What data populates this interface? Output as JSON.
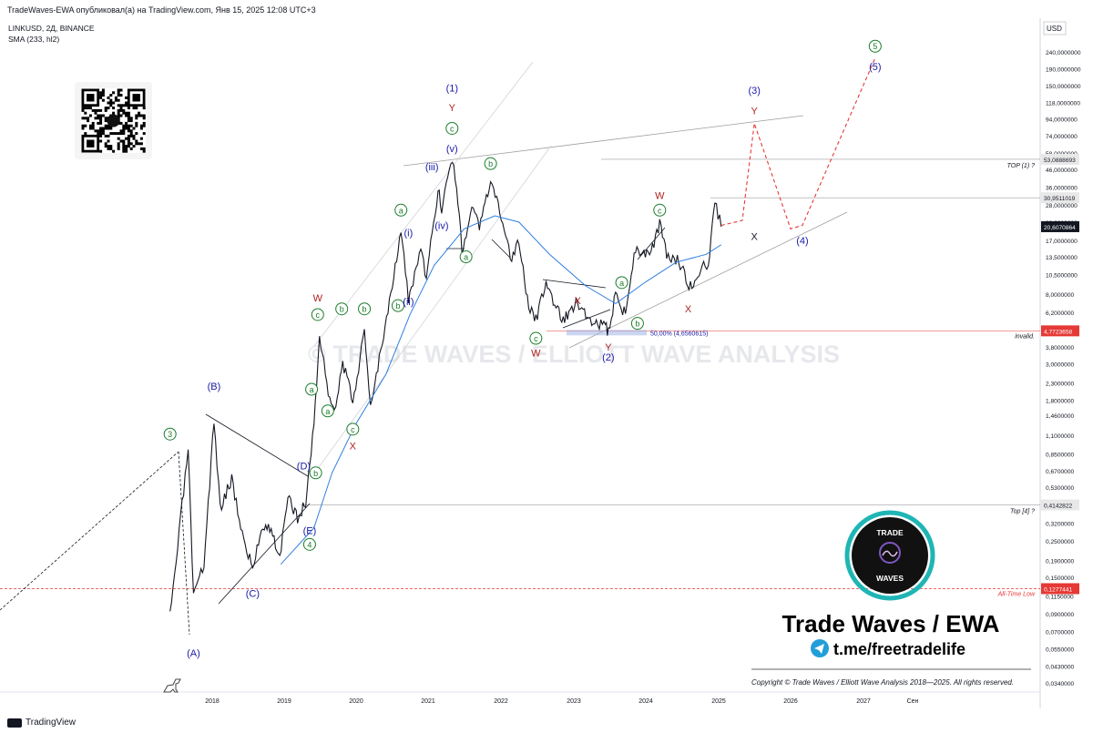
{
  "header": {
    "publisher_line": "TradeWaves-EWA опубликовал(а) на TradingView.com, Янв 15, 2025 12:08 UTC+3"
  },
  "symbol_info": {
    "line1": "LINKUSD, 2Д, BINANCE",
    "line2": "SMA (233, hl2)"
  },
  "footer": {
    "platform": "TradingView"
  },
  "branding": {
    "name": "Trade Waves / EWA",
    "telegram": "t.me/freetradelife",
    "logo_top": "TRADE",
    "logo_bottom": "WAVES",
    "watermark": "© TRADE WAVES / ELLIOTT WAVE ANALYSIS",
    "copyright": "Copyright © Trade Waves / Elliott Wave Analysis 2018—2025. All rights reserved."
  },
  "colors": {
    "impulse": "#1a1aa6",
    "correction": "#b22222",
    "minor": "#1b7d2b",
    "sma": "#2f7fe0",
    "projection": "#e53935"
  },
  "chart_data": {
    "type": "line",
    "symbol": "LINKUSD",
    "timeframe": "2Д",
    "exchange": "BINANCE",
    "y_scale": "log",
    "y_currency": "USD",
    "y_ticks": [
      "240,0000000",
      "190,0000000",
      "150,0000000",
      "118,0000000",
      "94,0000000",
      "74,0000000",
      "58,0000000",
      "46,0000000",
      "36,0000000",
      "28,0000000",
      "22,0000000",
      "17,0000000",
      "13,5000000",
      "10,5000000",
      "8,0000000",
      "6,2000000",
      "4,8000000",
      "3,8000000",
      "3,0000000",
      "2,3000000",
      "1,8000000",
      "1,4600000",
      "1,1000000",
      "0,8500000",
      "0,6700000",
      "0,5300000",
      "0,4150000",
      "0,3200000",
      "0,2500000",
      "0,1900000",
      "0,1500000",
      "0,1150000",
      "0,0900000",
      "0,0700000",
      "0,0550000",
      "0,0430000",
      "0,0340000"
    ],
    "x_ticks": [
      "2018",
      "2019",
      "2020",
      "2021",
      "2022",
      "2023",
      "2024",
      "2025",
      "2026",
      "2027",
      "Сен"
    ],
    "price_labels": [
      {
        "text": "53,0888693",
        "style": "gray"
      },
      {
        "text": "30,9511019",
        "style": "gray"
      },
      {
        "text": "20,6070864",
        "style": "dark"
      },
      {
        "text": "4,7723658",
        "style": "red"
      },
      {
        "text": "0,4142822",
        "style": "gray"
      },
      {
        "text": "0,1277441",
        "style": "red"
      }
    ],
    "level_labels": [
      "TOP (1) ?",
      "invalid.",
      "Top [4] ?",
      "All-Time Low"
    ],
    "fib_label": "50,00% (4,6560615)",
    "sma_label": "SMA (233, hl2)",
    "price_path": [
      [
        "2017-06-01",
        0.085
      ],
      [
        "2017-09-01",
        0.9
      ],
      [
        "2017-09-28",
        0.11
      ],
      [
        "2017-11-20",
        0.18
      ],
      [
        "2018-01-10",
        1.35
      ],
      [
        "2018-02-10",
        0.4
      ],
      [
        "2018-04-10",
        0.6
      ],
      [
        "2018-06-10",
        0.25
      ],
      [
        "2018-07-25",
        0.17
      ],
      [
        "2018-09-15",
        0.32
      ],
      [
        "2018-10-20",
        0.3
      ],
      [
        "2018-12-10",
        0.2
      ],
      [
        "2019-01-20",
        0.45
      ],
      [
        "2019-03-10",
        0.35
      ],
      [
        "2019-04-20",
        0.42
      ],
      [
        "2019-06-01",
        1.3
      ],
      [
        "2019-06-29",
        4.4
      ],
      [
        "2019-08-20",
        1.8
      ],
      [
        "2019-09-20",
        1.65
      ],
      [
        "2019-10-25",
        3.0
      ],
      [
        "2019-12-15",
        1.8
      ],
      [
        "2020-02-12",
        4.6
      ],
      [
        "2020-03-14",
        1.7
      ],
      [
        "2020-05-20",
        4.5
      ],
      [
        "2020-08-16",
        19.8
      ],
      [
        "2020-09-23",
        7.3
      ],
      [
        "2020-11-25",
        15.0
      ],
      [
        "2020-12-23",
        9.8
      ],
      [
        "2021-02-20",
        35.0
      ],
      [
        "2021-03-10",
        26.0
      ],
      [
        "2021-04-10",
        44.0
      ],
      [
        "2021-05-10",
        52.0
      ],
      [
        "2021-06-20",
        15.0
      ],
      [
        "2021-08-15",
        28.0
      ],
      [
        "2021-09-15",
        20.0
      ],
      [
        "2021-11-10",
        38.0
      ],
      [
        "2022-01-10",
        22.0
      ],
      [
        "2022-02-24",
        13.0
      ],
      [
        "2022-03-25",
        17.5
      ],
      [
        "2022-05-20",
        7.0
      ],
      [
        "2022-06-18",
        5.3
      ],
      [
        "2022-08-15",
        9.0
      ],
      [
        "2022-11-09",
        5.5
      ],
      [
        "2023-01-20",
        7.2
      ],
      [
        "2023-03-10",
        5.8
      ],
      [
        "2023-06-10",
        5.0
      ],
      [
        "2023-06-25",
        4.7
      ],
      [
        "2023-08-01",
        8.0
      ],
      [
        "2023-09-20",
        6.0
      ],
      [
        "2023-11-10",
        15.5
      ],
      [
        "2024-01-20",
        13.5
      ],
      [
        "2024-03-11",
        21.0
      ],
      [
        "2024-04-15",
        14.0
      ],
      [
        "2024-06-15",
        13.0
      ],
      [
        "2024-08-05",
        8.5
      ],
      [
        "2024-10-10",
        12.0
      ],
      [
        "2024-11-10",
        11.0
      ],
      [
        "2024-12-13",
        30.0
      ],
      [
        "2025-01-14",
        20.6
      ]
    ],
    "sma_path": [
      [
        "2018-12-15",
        0.18
      ],
      [
        "2019-06-01",
        0.3
      ],
      [
        "2019-09-01",
        0.65
      ],
      [
        "2020-01-01",
        1.3
      ],
      [
        "2020-06-01",
        2.6
      ],
      [
        "2020-10-01",
        6.0
      ],
      [
        "2021-02-01",
        12.0
      ],
      [
        "2021-07-01",
        20.0
      ],
      [
        "2021-12-01",
        24.0
      ],
      [
        "2022-04-01",
        22.0
      ],
      [
        "2022-09-01",
        14.0
      ],
      [
        "2023-03-01",
        9.0
      ],
      [
        "2023-08-01",
        7.0
      ],
      [
        "2024-01-01",
        9.5
      ],
      [
        "2024-06-01",
        12.5
      ],
      [
        "2024-11-01",
        14.0
      ],
      [
        "2025-01-14",
        16.0
      ]
    ],
    "projection_path": [
      [
        "2025-01-14",
        21.0
      ],
      [
        "2025-05-01",
        22.5
      ],
      [
        "2025-07-01",
        88.0
      ],
      [
        "2026-01-01",
        20.0
      ],
      [
        "2026-03-01",
        21.0
      ],
      [
        "2027-03-01",
        220.0
      ]
    ],
    "wave_labels": [
      {
        "text": "(A)",
        "date": "2017-09-28",
        "price": 0.052,
        "color": "impulse"
      },
      {
        "text": "3",
        "date": "2017-06-01",
        "price": 1.12,
        "color": "minor",
        "circled": true
      },
      {
        "text": "(B)",
        "date": "2018-01-10",
        "price": 2.2,
        "color": "impulse"
      },
      {
        "text": "(C)",
        "date": "2018-07-25",
        "price": 0.12,
        "color": "impulse"
      },
      {
        "text": "(D)",
        "date": "2019-04-10",
        "price": 0.72,
        "color": "impulse"
      },
      {
        "text": "(E)",
        "date": "2019-05-10",
        "price": 0.29,
        "color": "impulse"
      },
      {
        "text": "4",
        "date": "2019-05-10",
        "price": 0.238,
        "color": "minor",
        "circled": true
      },
      {
        "text": "b",
        "date": "2019-06-10",
        "price": 0.65,
        "color": "minor",
        "circled": true
      },
      {
        "text": "a",
        "date": "2019-05-20",
        "price": 2.1,
        "color": "minor",
        "circled": true
      },
      {
        "text": "c",
        "date": "2019-06-20",
        "price": 6.0,
        "color": "minor",
        "circled": true
      },
      {
        "text": "W",
        "date": "2019-06-20",
        "price": 7.6,
        "color": "correction"
      },
      {
        "text": "a",
        "date": "2019-08-10",
        "price": 1.55,
        "color": "minor",
        "circled": true
      },
      {
        "text": "b",
        "date": "2019-10-20",
        "price": 6.5,
        "color": "minor",
        "circled": true
      },
      {
        "text": "c",
        "date": "2019-12-15",
        "price": 1.2,
        "color": "minor",
        "circled": true
      },
      {
        "text": "X",
        "date": "2019-12-15",
        "price": 0.95,
        "color": "correction"
      },
      {
        "text": "b",
        "date": "2020-02-12",
        "price": 6.5,
        "color": "minor",
        "circled": true
      },
      {
        "text": "b",
        "date": "2020-08-01",
        "price": 6.8,
        "color": "minor",
        "circled": true
      },
      {
        "text": "a",
        "date": "2020-08-16",
        "price": 26.0,
        "color": "minor",
        "circled": true
      },
      {
        "text": "(ii)",
        "date": "2020-09-23",
        "price": 7.2,
        "color": "impulse"
      },
      {
        "text": "(i)",
        "date": "2020-09-23",
        "price": 19.0,
        "color": "impulse"
      },
      {
        "text": "(iii)",
        "date": "2021-01-20",
        "price": 48.0,
        "color": "impulse"
      },
      {
        "text": "(iv)",
        "date": "2021-03-10",
        "price": 21.0,
        "color": "impulse"
      },
      {
        "text": "(v)",
        "date": "2021-05-01",
        "price": 62.0,
        "color": "impulse"
      },
      {
        "text": "c",
        "date": "2021-05-01",
        "price": 82.0,
        "color": "minor",
        "circled": true
      },
      {
        "text": "Y",
        "date": "2021-05-01",
        "price": 110.0,
        "color": "correction"
      },
      {
        "text": "(1)",
        "date": "2021-05-01",
        "price": 145.0,
        "color": "impulse"
      },
      {
        "text": "a",
        "date": "2021-07-10",
        "price": 13.5,
        "color": "minor",
        "circled": true
      },
      {
        "text": "b",
        "date": "2021-11-10",
        "price": 50.0,
        "color": "minor",
        "circled": true
      },
      {
        "text": "c",
        "date": "2022-06-25",
        "price": 4.3,
        "color": "minor",
        "circled": true
      },
      {
        "text": "W",
        "date": "2022-06-25",
        "price": 3.5,
        "color": "correction"
      },
      {
        "text": "X",
        "date": "2023-01-20",
        "price": 7.3,
        "color": "correction"
      },
      {
        "text": "Y",
        "date": "2023-06-25",
        "price": 3.8,
        "color": "correction"
      },
      {
        "text": "(2)",
        "date": "2023-06-25",
        "price": 3.3,
        "color": "impulse"
      },
      {
        "text": "a",
        "date": "2023-09-01",
        "price": 9.4,
        "color": "minor",
        "circled": true
      },
      {
        "text": "b",
        "date": "2023-11-20",
        "price": 5.3,
        "color": "minor",
        "circled": true
      },
      {
        "text": "c",
        "date": "2024-03-11",
        "price": 26.0,
        "color": "minor",
        "circled": true
      },
      {
        "text": "W",
        "date": "2024-03-11",
        "price": 32.0,
        "color": "correction"
      },
      {
        "text": "X",
        "date": "2024-08-01",
        "price": 6.5,
        "color": "correction"
      },
      {
        "text": "X",
        "date": "2025-07-01",
        "price": 18.0,
        "color": "correction_black"
      },
      {
        "text": "(4)",
        "date": "2026-03-01",
        "price": 17.0,
        "color": "impulse"
      },
      {
        "text": "Y",
        "date": "2025-07-01",
        "price": 105.0,
        "color": "correction"
      },
      {
        "text": "(3)",
        "date": "2025-07-01",
        "price": 140.0,
        "color": "impulse"
      },
      {
        "text": "5",
        "date": "2027-03-01",
        "price": 260.0,
        "color": "minor",
        "circled": true
      },
      {
        "text": "(5)",
        "date": "2027-03-01",
        "price": 195.0,
        "color": "impulse"
      }
    ]
  }
}
